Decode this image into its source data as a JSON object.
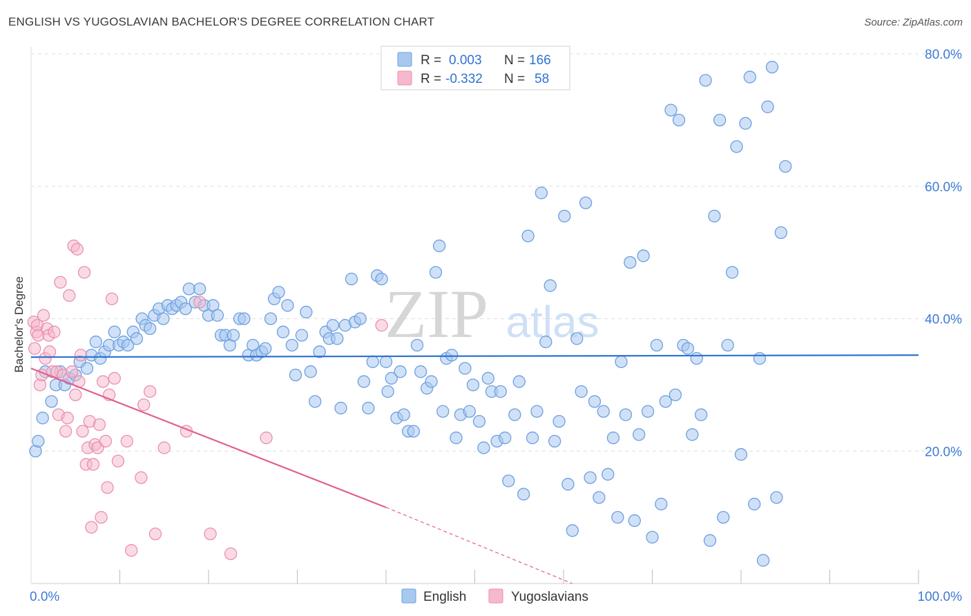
{
  "title": "ENGLISH VS YUGOSLAVIAN BACHELOR'S DEGREE CORRELATION CHART",
  "source": "Source: ZipAtlas.com",
  "watermark": {
    "zip": "ZIP",
    "atlas": "atlas"
  },
  "colors": {
    "english_fill": "#a9c8f0",
    "english_stroke": "#6b9fe0",
    "english_line": "#2f72d0",
    "yugo_fill": "#f6b8cc",
    "yugo_stroke": "#e990ad",
    "yugo_line": "#e0608e",
    "tick_label": "#3d7ad6",
    "grid": "#dddddd"
  },
  "legend": {
    "rows": [
      {
        "r_label": "R =",
        "r_value": "0.003",
        "n_label": "N =",
        "n_value": "166"
      },
      {
        "r_label": "R =",
        "r_value": "-0.332",
        "n_label": "N =",
        "n_value": "58"
      }
    ]
  },
  "bottom_legend": [
    "English",
    "Yugoslavians"
  ],
  "chart_data": {
    "type": "scatter",
    "title": "ENGLISH VS YUGOSLAVIAN BACHELOR'S DEGREE CORRELATION CHART",
    "xlabel": "",
    "ylabel": "Bachelor's Degree",
    "xlim": [
      0,
      100
    ],
    "ylim": [
      0,
      80
    ],
    "x_tick_labels": [
      "0.0%",
      "100.0%"
    ],
    "y_ticks": [
      20,
      40,
      60,
      80
    ],
    "y_tick_labels": [
      "20.0%",
      "40.0%",
      "60.0%",
      "80.0%"
    ],
    "grid": true,
    "series": [
      {
        "name": "English",
        "R": 0.003,
        "N": 166,
        "trend": {
          "x": [
            0,
            100
          ],
          "y": [
            34.2,
            34.5
          ]
        },
        "points": [
          [
            0.5,
            20.0
          ],
          [
            0.8,
            21.5
          ],
          [
            1.3,
            25.0
          ],
          [
            1.6,
            32.0
          ],
          [
            2.3,
            27.5
          ],
          [
            2.8,
            30.0
          ],
          [
            3.3,
            32.0
          ],
          [
            3.8,
            30.0
          ],
          [
            4.3,
            31.0
          ],
          [
            5.0,
            31.5
          ],
          [
            5.5,
            33.5
          ],
          [
            6.3,
            32.5
          ],
          [
            6.8,
            34.5
          ],
          [
            7.3,
            36.5
          ],
          [
            7.8,
            34.0
          ],
          [
            8.3,
            35.0
          ],
          [
            8.8,
            36.0
          ],
          [
            9.4,
            38.0
          ],
          [
            9.9,
            36.0
          ],
          [
            10.4,
            36.5
          ],
          [
            10.9,
            36.0
          ],
          [
            11.5,
            38.0
          ],
          [
            11.9,
            37.0
          ],
          [
            12.5,
            40.0
          ],
          [
            12.9,
            39.0
          ],
          [
            13.4,
            38.5
          ],
          [
            13.9,
            40.5
          ],
          [
            14.4,
            41.5
          ],
          [
            14.9,
            40.0
          ],
          [
            15.4,
            42.0
          ],
          [
            15.9,
            41.5
          ],
          [
            16.4,
            42.0
          ],
          [
            16.9,
            42.5
          ],
          [
            17.4,
            41.5
          ],
          [
            17.8,
            44.5
          ],
          [
            18.5,
            42.5
          ],
          [
            19.0,
            44.5
          ],
          [
            19.5,
            42.0
          ],
          [
            20.0,
            40.5
          ],
          [
            20.5,
            42.0
          ],
          [
            21.0,
            40.5
          ],
          [
            21.4,
            37.5
          ],
          [
            21.9,
            37.5
          ],
          [
            22.4,
            36.0
          ],
          [
            22.8,
            37.5
          ],
          [
            23.5,
            40.0
          ],
          [
            24.0,
            40.0
          ],
          [
            24.5,
            34.5
          ],
          [
            25.0,
            36.0
          ],
          [
            25.4,
            34.5
          ],
          [
            26.0,
            35.0
          ],
          [
            26.4,
            35.5
          ],
          [
            27.0,
            40.0
          ],
          [
            27.4,
            43.0
          ],
          [
            27.9,
            44.0
          ],
          [
            28.4,
            38.0
          ],
          [
            28.9,
            42.0
          ],
          [
            29.4,
            36.0
          ],
          [
            29.8,
            31.5
          ],
          [
            30.5,
            37.5
          ],
          [
            31.0,
            41.0
          ],
          [
            31.5,
            32.0
          ],
          [
            32.0,
            27.5
          ],
          [
            32.5,
            35.0
          ],
          [
            33.2,
            38.0
          ],
          [
            33.6,
            37.0
          ],
          [
            34.0,
            39.0
          ],
          [
            34.5,
            37.0
          ],
          [
            34.9,
            26.5
          ],
          [
            35.4,
            39.0
          ],
          [
            36.1,
            46.0
          ],
          [
            36.5,
            39.5
          ],
          [
            37.1,
            40.0
          ],
          [
            37.5,
            30.5
          ],
          [
            38.0,
            26.5
          ],
          [
            38.5,
            33.5
          ],
          [
            39.0,
            46.5
          ],
          [
            39.5,
            46.0
          ],
          [
            40.0,
            33.5
          ],
          [
            40.2,
            29.0
          ],
          [
            40.6,
            31.0
          ],
          [
            41.2,
            25.0
          ],
          [
            41.6,
            32.0
          ],
          [
            42.0,
            25.5
          ],
          [
            42.5,
            23.0
          ],
          [
            43.1,
            23.0
          ],
          [
            43.5,
            36.0
          ],
          [
            43.9,
            32.0
          ],
          [
            44.6,
            29.5
          ],
          [
            45.1,
            30.5
          ],
          [
            45.6,
            47.0
          ],
          [
            46.0,
            51.0
          ],
          [
            46.4,
            26.0
          ],
          [
            46.8,
            34.0
          ],
          [
            47.4,
            34.5
          ],
          [
            47.9,
            22.0
          ],
          [
            48.4,
            25.5
          ],
          [
            48.9,
            32.5
          ],
          [
            49.4,
            26.0
          ],
          [
            49.8,
            30.0
          ],
          [
            50.5,
            24.5
          ],
          [
            51.0,
            20.5
          ],
          [
            51.5,
            31.0
          ],
          [
            51.9,
            29.0
          ],
          [
            52.5,
            21.5
          ],
          [
            52.9,
            29.0
          ],
          [
            53.4,
            22.0
          ],
          [
            53.8,
            15.5
          ],
          [
            54.5,
            25.5
          ],
          [
            55.0,
            30.5
          ],
          [
            55.5,
            13.5
          ],
          [
            56.0,
            52.5
          ],
          [
            56.5,
            22.0
          ],
          [
            57.0,
            26.0
          ],
          [
            57.5,
            59.0
          ],
          [
            58.0,
            36.5
          ],
          [
            58.5,
            45.0
          ],
          [
            59.0,
            21.5
          ],
          [
            59.5,
            24.5
          ],
          [
            60.1,
            55.5
          ],
          [
            60.5,
            15.0
          ],
          [
            61.0,
            8.0
          ],
          [
            61.5,
            37.0
          ],
          [
            62.0,
            29.0
          ],
          [
            62.5,
            57.5
          ],
          [
            63.0,
            16.0
          ],
          [
            63.5,
            27.5
          ],
          [
            64.0,
            13.0
          ],
          [
            64.5,
            26.0
          ],
          [
            65.0,
            16.5
          ],
          [
            65.6,
            22.0
          ],
          [
            66.1,
            10.0
          ],
          [
            66.5,
            33.5
          ],
          [
            67.0,
            25.5
          ],
          [
            67.5,
            48.5
          ],
          [
            68.0,
            9.5
          ],
          [
            68.5,
            22.5
          ],
          [
            69.0,
            49.5
          ],
          [
            69.5,
            26.0
          ],
          [
            70.0,
            7.0
          ],
          [
            70.5,
            36.0
          ],
          [
            71.0,
            12.0
          ],
          [
            71.5,
            27.5
          ],
          [
            72.1,
            71.5
          ],
          [
            72.6,
            28.5
          ],
          [
            73.0,
            70.0
          ],
          [
            73.5,
            36.0
          ],
          [
            74.0,
            35.5
          ],
          [
            74.5,
            22.5
          ],
          [
            75.0,
            34.0
          ],
          [
            75.5,
            25.5
          ],
          [
            76.0,
            76.0
          ],
          [
            76.5,
            6.5
          ],
          [
            77.0,
            55.5
          ],
          [
            77.6,
            70.0
          ],
          [
            78.0,
            10.0
          ],
          [
            78.5,
            36.0
          ],
          [
            79.0,
            47.0
          ],
          [
            79.5,
            66.0
          ],
          [
            80.0,
            19.5
          ],
          [
            80.5,
            69.5
          ],
          [
            81.0,
            76.5
          ],
          [
            81.5,
            12.0
          ],
          [
            82.1,
            34.0
          ],
          [
            82.5,
            3.5
          ],
          [
            83.0,
            72.0
          ],
          [
            83.5,
            78.0
          ],
          [
            84.0,
            13.0
          ],
          [
            84.5,
            53.0
          ],
          [
            85.0,
            63.0
          ]
        ]
      },
      {
        "name": "Yugoslavians",
        "R": -0.332,
        "N": 58,
        "trend": {
          "x": [
            0,
            40,
            61
          ],
          "y": [
            32.5,
            11.5,
            0
          ],
          "solid_until_x": 40
        },
        "points": [
          [
            0.3,
            39.5
          ],
          [
            0.4,
            35.5
          ],
          [
            0.6,
            38.0
          ],
          [
            0.7,
            39.0
          ],
          [
            0.8,
            37.5
          ],
          [
            1.0,
            30.0
          ],
          [
            1.2,
            31.5
          ],
          [
            1.4,
            40.5
          ],
          [
            1.6,
            34.0
          ],
          [
            1.8,
            38.5
          ],
          [
            2.0,
            37.5
          ],
          [
            2.1,
            35.0
          ],
          [
            2.4,
            32.0
          ],
          [
            2.6,
            38.0
          ],
          [
            2.9,
            32.0
          ],
          [
            3.1,
            25.5
          ],
          [
            3.3,
            45.5
          ],
          [
            3.6,
            31.5
          ],
          [
            3.9,
            23.0
          ],
          [
            4.1,
            25.0
          ],
          [
            4.3,
            43.5
          ],
          [
            4.6,
            32.0
          ],
          [
            4.8,
            51.0
          ],
          [
            5.0,
            28.5
          ],
          [
            5.2,
            50.5
          ],
          [
            5.4,
            30.5
          ],
          [
            5.6,
            34.5
          ],
          [
            5.8,
            23.0
          ],
          [
            6.0,
            47.0
          ],
          [
            6.2,
            18.0
          ],
          [
            6.4,
            20.5
          ],
          [
            6.6,
            24.5
          ],
          [
            6.8,
            8.5
          ],
          [
            7.0,
            18.0
          ],
          [
            7.2,
            21.0
          ],
          [
            7.5,
            20.5
          ],
          [
            7.7,
            24.0
          ],
          [
            7.9,
            10.0
          ],
          [
            8.1,
            30.5
          ],
          [
            8.4,
            21.5
          ],
          [
            8.6,
            14.5
          ],
          [
            8.8,
            28.5
          ],
          [
            9.1,
            43.0
          ],
          [
            9.4,
            31.0
          ],
          [
            9.8,
            18.5
          ],
          [
            10.8,
            21.5
          ],
          [
            11.3,
            5.0
          ],
          [
            12.4,
            16.0
          ],
          [
            12.7,
            27.0
          ],
          [
            13.4,
            29.0
          ],
          [
            14.0,
            7.5
          ],
          [
            15.0,
            20.5
          ],
          [
            17.5,
            23.0
          ],
          [
            19.0,
            42.5
          ],
          [
            20.2,
            7.5
          ],
          [
            22.5,
            4.5
          ],
          [
            26.5,
            22.0
          ],
          [
            39.5,
            39.0
          ]
        ]
      }
    ]
  }
}
